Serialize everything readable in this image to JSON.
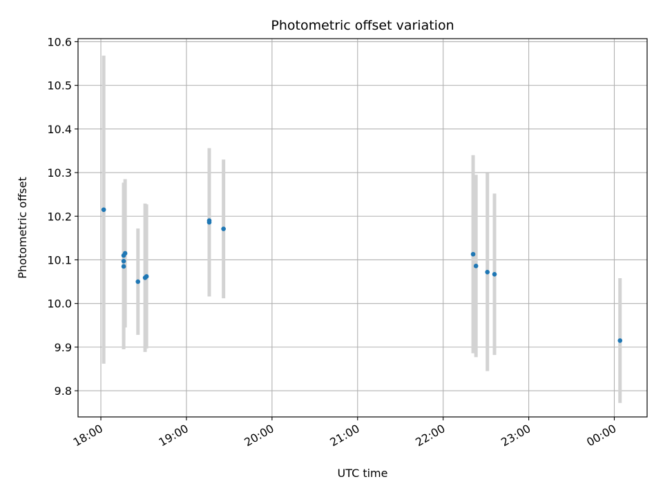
{
  "chart_data": {
    "type": "scatter",
    "title": "Photometric offset variation",
    "xlabel": "UTC time",
    "ylabel": "Photometric offset",
    "grid": true,
    "legend": "none",
    "colors": {
      "point": "#1f77b4",
      "errorbar": "#d3d3d3",
      "grid": "#b0b0b0"
    },
    "xlim": [
      "17:44",
      "24:23"
    ],
    "ylim": [
      9.74,
      10.607
    ],
    "x_ticks": [
      {
        "value": "18:00",
        "label": "18:00"
      },
      {
        "value": "19:00",
        "label": "19:00"
      },
      {
        "value": "20:00",
        "label": "20:00"
      },
      {
        "value": "21:00",
        "label": "21:00"
      },
      {
        "value": "22:00",
        "label": "22:00"
      },
      {
        "value": "23:00",
        "label": "23:00"
      },
      {
        "value": "24:00",
        "label": "00:00"
      }
    ],
    "y_ticks": [
      9.8,
      9.9,
      10.0,
      10.1,
      10.2,
      10.3,
      10.4,
      10.5,
      10.6
    ],
    "y_tick_labels": [
      "9.8",
      "9.9",
      "10.0",
      "10.1",
      "10.2",
      "10.3",
      "10.4",
      "10.5",
      "10.6"
    ],
    "points": [
      {
        "x": "18:02",
        "y": 10.215,
        "yerr": 0.353
      },
      {
        "x": "18:16",
        "y": 10.085,
        "yerr": 0.19
      },
      {
        "x": "18:16",
        "y": 10.097,
        "yerr": 0.18
      },
      {
        "x": "18:16",
        "y": 10.11,
        "yerr": 0.165
      },
      {
        "x": "18:17",
        "y": 10.115,
        "yerr": 0.17
      },
      {
        "x": "18:26",
        "y": 10.05,
        "yerr": 0.122
      },
      {
        "x": "18:31",
        "y": 10.059,
        "yerr": 0.17
      },
      {
        "x": "18:32",
        "y": 10.062,
        "yerr": 0.165
      },
      {
        "x": "19:16",
        "y": 10.186,
        "yerr": 0.17
      },
      {
        "x": "19:16",
        "y": 10.19,
        "yerr": 0.165
      },
      {
        "x": "19:26",
        "y": 10.171,
        "yerr": 0.159
      },
      {
        "x": "22:21",
        "y": 10.113,
        "yerr": 0.227
      },
      {
        "x": "22:23",
        "y": 10.086,
        "yerr": 0.209
      },
      {
        "x": "22:31",
        "y": 10.072,
        "yerr": 0.227
      },
      {
        "x": "22:36",
        "y": 10.067,
        "yerr": 0.185
      },
      {
        "x": "24:04",
        "y": 9.915,
        "yerr": 0.143
      }
    ]
  }
}
